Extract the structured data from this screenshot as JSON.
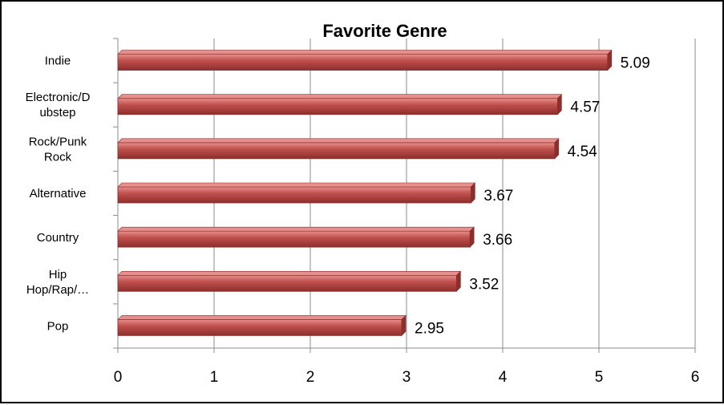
{
  "chart_data": {
    "type": "bar",
    "orientation": "horizontal",
    "title": "Favorite Genre",
    "categories": [
      "Indie",
      "Electronic/D ubstep",
      "Rock/Punk Rock",
      "Alternative",
      "Country",
      "Hip Hop/Rap/…",
      "Pop"
    ],
    "category_label_lines": [
      [
        "Indie"
      ],
      [
        "Electronic/D",
        "ubstep"
      ],
      [
        "Rock/Punk",
        "Rock"
      ],
      [
        "Alternative"
      ],
      [
        "Country"
      ],
      [
        "Hip",
        "Hop/Rap/…"
      ],
      [
        "Pop"
      ]
    ],
    "values": [
      5.09,
      4.57,
      4.54,
      3.67,
      3.66,
      3.52,
      2.95
    ],
    "data_labels": [
      "5.09",
      "4.57",
      "4.54",
      "3.67",
      "3.66",
      "3.52",
      "2.95"
    ],
    "xlim": [
      0,
      6
    ],
    "x_ticks": [
      "0",
      "1",
      "2",
      "3",
      "4",
      "5",
      "6"
    ],
    "grid": "vertical",
    "legend": "none",
    "bar_color": "#c0504d",
    "bar_dark_color": "#8c2f2c",
    "bar_light_color": "#e6908d",
    "xlabel": "",
    "ylabel": ""
  }
}
